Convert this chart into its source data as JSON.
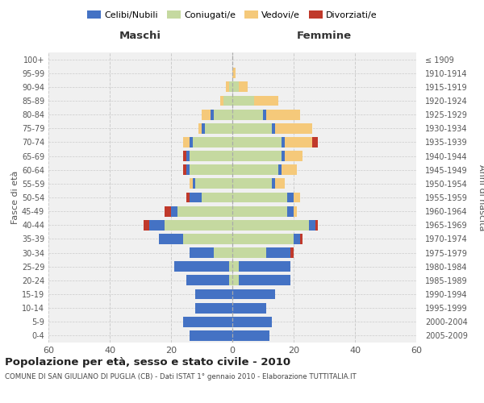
{
  "age_groups": [
    "0-4",
    "5-9",
    "10-14",
    "15-19",
    "20-24",
    "25-29",
    "30-34",
    "35-39",
    "40-44",
    "45-49",
    "50-54",
    "55-59",
    "60-64",
    "65-69",
    "70-74",
    "75-79",
    "80-84",
    "85-89",
    "90-94",
    "95-99",
    "100+"
  ],
  "birth_years": [
    "2005-2009",
    "2000-2004",
    "1995-1999",
    "1990-1994",
    "1985-1989",
    "1980-1984",
    "1975-1979",
    "1970-1974",
    "1965-1969",
    "1960-1964",
    "1955-1959",
    "1950-1954",
    "1945-1949",
    "1940-1944",
    "1935-1939",
    "1930-1934",
    "1925-1929",
    "1920-1924",
    "1915-1919",
    "1910-1914",
    "≤ 1909"
  ],
  "colors": {
    "celibi": "#4472C4",
    "coniugati": "#C5D9A0",
    "vedovi": "#F5C97A",
    "divorziati": "#C0392B"
  },
  "males": {
    "celibi": [
      14,
      16,
      12,
      12,
      14,
      18,
      8,
      8,
      5,
      2,
      4,
      1,
      1,
      1,
      1,
      1,
      1,
      0,
      0,
      0,
      0
    ],
    "coniugati": [
      0,
      0,
      0,
      0,
      1,
      1,
      6,
      16,
      22,
      18,
      10,
      12,
      14,
      14,
      13,
      9,
      6,
      3,
      1,
      0,
      0
    ],
    "vedovi": [
      0,
      0,
      0,
      0,
      0,
      0,
      0,
      0,
      0,
      0,
      0,
      1,
      0,
      0,
      2,
      1,
      3,
      1,
      1,
      0,
      0
    ],
    "divorziati": [
      0,
      0,
      0,
      0,
      0,
      0,
      0,
      0,
      2,
      2,
      1,
      0,
      1,
      1,
      0,
      0,
      0,
      0,
      0,
      0,
      0
    ]
  },
  "females": {
    "celibi": [
      12,
      13,
      11,
      14,
      17,
      17,
      8,
      2,
      2,
      2,
      2,
      1,
      1,
      1,
      1,
      1,
      1,
      0,
      0,
      0,
      0
    ],
    "coniugati": [
      0,
      0,
      0,
      0,
      2,
      2,
      11,
      20,
      25,
      18,
      18,
      13,
      15,
      16,
      16,
      13,
      10,
      7,
      2,
      0,
      0
    ],
    "vedovi": [
      0,
      0,
      0,
      0,
      0,
      0,
      0,
      0,
      0,
      1,
      2,
      3,
      5,
      6,
      9,
      12,
      11,
      8,
      3,
      1,
      0
    ],
    "divorziati": [
      0,
      0,
      0,
      0,
      0,
      0,
      1,
      1,
      1,
      0,
      0,
      0,
      0,
      0,
      2,
      0,
      0,
      0,
      0,
      0,
      0
    ]
  },
  "xlim": 60,
  "title": "Popolazione per età, sesso e stato civile - 2010",
  "subtitle": "COMUNE DI SAN GIULIANO DI PUGLIA (CB) - Dati ISTAT 1° gennaio 2010 - Elaborazione TUTTITALIA.IT",
  "xlabel_left": "Maschi",
  "xlabel_right": "Femmine",
  "ylabel_left": "Fasce di età",
  "ylabel_right": "Anni di nascita",
  "legend_labels": [
    "Celibi/Nubili",
    "Coniugati/e",
    "Vedovi/e",
    "Divorziati/e"
  ],
  "bg_color": "#f0f0f0",
  "grid_color": "#cccccc",
  "text_color": "#555555"
}
